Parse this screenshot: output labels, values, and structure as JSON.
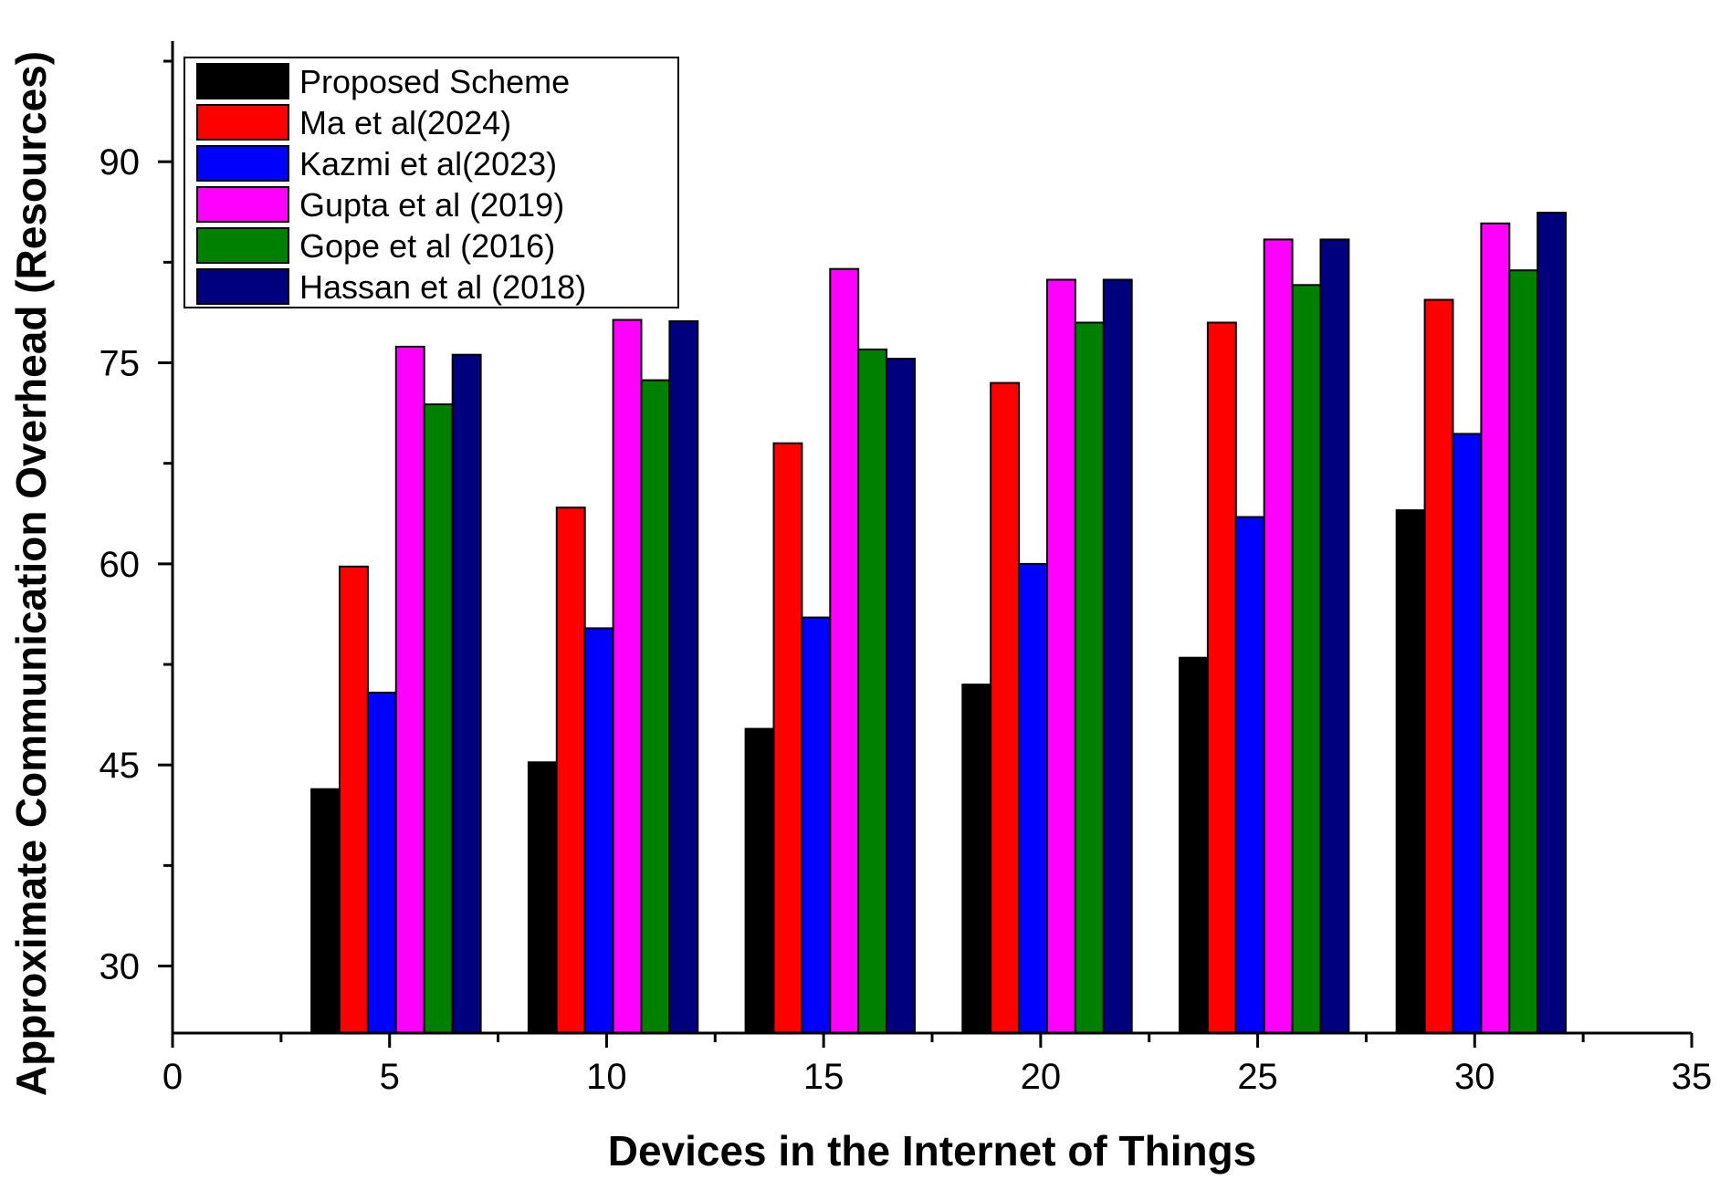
{
  "chart_data": {
    "type": "bar",
    "title": "",
    "xlabel": "Devices in the Internet of Things",
    "ylabel": "Approximate Communication Overhead (Resources)",
    "x": [
      5,
      10,
      15,
      20,
      25,
      30
    ],
    "xlim": [
      0,
      35
    ],
    "xticks": [
      "0",
      "5",
      "10",
      "15",
      "20",
      "25",
      "30",
      "35"
    ],
    "xtick_values": [
      0,
      5,
      10,
      15,
      20,
      25,
      30,
      35
    ],
    "ylim": [
      25,
      99
    ],
    "yticks": [
      "30",
      "45",
      "60",
      "75",
      "90"
    ],
    "ytick_values": [
      30,
      45,
      60,
      75,
      90
    ],
    "grid": false,
    "legend_position": "top-left",
    "series": [
      {
        "name": "Proposed Scheme",
        "color": "#000000",
        "values": [
          43.2,
          45.2,
          47.7,
          51.0,
          53.0,
          64.0
        ]
      },
      {
        "name": "Ma et al(2024)",
        "color": "#ff0000",
        "values": [
          59.8,
          64.2,
          69.0,
          73.5,
          78.0,
          79.7
        ]
      },
      {
        "name": "Kazmi et al(2023)",
        "color": "#0000ff",
        "values": [
          50.4,
          55.2,
          56.0,
          60.0,
          63.5,
          69.7
        ]
      },
      {
        "name": "Gupta et al (2019)",
        "color": "#ff00ff",
        "values": [
          76.2,
          78.2,
          82.0,
          81.2,
          84.2,
          85.4
        ]
      },
      {
        "name": "Gope et al (2016)",
        "color": "#008000",
        "values": [
          71.9,
          73.7,
          76.0,
          78.0,
          80.8,
          81.9
        ]
      },
      {
        "name": "Hassan et al (2018)",
        "color": "#00007f",
        "values": [
          75.6,
          78.1,
          75.3,
          81.2,
          84.2,
          86.2
        ]
      }
    ]
  }
}
